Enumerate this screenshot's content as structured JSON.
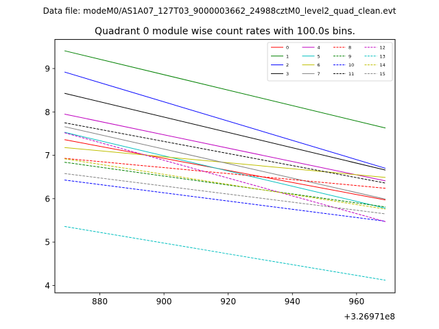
{
  "chart_data": {
    "type": "line",
    "suptitle": "Data file: modeM0/AS1A07_127T03_9000003662_24988cztM0_level2_quad_clean.evt",
    "title": "Quadrant 0 module wise count rates with 100.0s bins.",
    "xlabel": "",
    "ylabel": "",
    "x_offset_label": "+3.26971e8",
    "x_offset": 326971000,
    "xlim": [
      866,
      972
    ],
    "ylim": [
      3.83,
      9.67
    ],
    "xticks": [
      880,
      900,
      920,
      940,
      960
    ],
    "yticks": [
      4,
      5,
      6,
      7,
      8,
      9
    ],
    "grid": false,
    "legend": {
      "placement": "top-right",
      "ncol": 4
    },
    "x": [
      869,
      969
    ],
    "series": [
      {
        "name": "0",
        "color": "#ff0000",
        "dash": false,
        "values": [
          7.36,
          5.97
        ]
      },
      {
        "name": "1",
        "color": "#008000",
        "dash": false,
        "values": [
          9.41,
          7.63
        ]
      },
      {
        "name": "2",
        "color": "#0000ff",
        "dash": false,
        "values": [
          8.92,
          6.7
        ]
      },
      {
        "name": "3",
        "color": "#000000",
        "dash": false,
        "values": [
          8.43,
          6.66
        ]
      },
      {
        "name": "4",
        "color": "#bf00bf",
        "dash": false,
        "values": [
          7.95,
          6.41
        ]
      },
      {
        "name": "5",
        "color": "#00bfbf",
        "dash": false,
        "values": [
          7.53,
          5.78
        ]
      },
      {
        "name": "6",
        "color": "#bfbf00",
        "dash": false,
        "values": [
          7.18,
          6.49
        ]
      },
      {
        "name": "7",
        "color": "#808080",
        "dash": false,
        "values": [
          7.66,
          5.99
        ]
      },
      {
        "name": "8",
        "color": "#ff0000",
        "dash": true,
        "values": [
          6.93,
          6.24
        ]
      },
      {
        "name": "9",
        "color": "#008000",
        "dash": true,
        "values": [
          6.84,
          5.81
        ]
      },
      {
        "name": "10",
        "color": "#0000ff",
        "dash": true,
        "values": [
          6.43,
          5.48
        ]
      },
      {
        "name": "11",
        "color": "#000000",
        "dash": true,
        "values": [
          7.75,
          6.36
        ]
      },
      {
        "name": "12",
        "color": "#bf00bf",
        "dash": true,
        "values": [
          7.52,
          5.47
        ]
      },
      {
        "name": "13",
        "color": "#00bfbf",
        "dash": true,
        "values": [
          5.36,
          4.12
        ]
      },
      {
        "name": "14",
        "color": "#bfbf00",
        "dash": true,
        "values": [
          6.92,
          5.76
        ]
      },
      {
        "name": "15",
        "color": "#808080",
        "dash": true,
        "values": [
          6.58,
          5.65
        ]
      }
    ]
  }
}
